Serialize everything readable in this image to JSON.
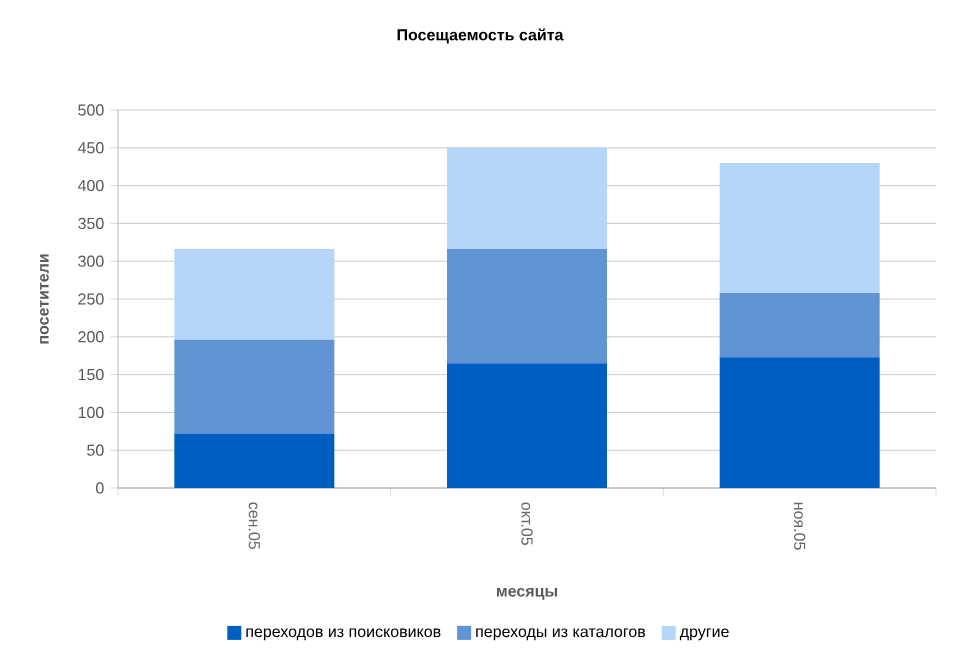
{
  "chart_data": {
    "type": "bar",
    "title": "Посещаемость сайта",
    "xlabel": "месяцы",
    "ylabel": "посетители",
    "categories": [
      "сен.05",
      "окт.05",
      "ноя.05"
    ],
    "stacked": true,
    "series": [
      {
        "name": "переходов из поисковиков",
        "color": "#005ec0",
        "values": [
          72,
          165,
          173
        ]
      },
      {
        "name": "переходы из каталогов",
        "color": "#6094d4",
        "values": [
          124,
          151,
          85
        ]
      },
      {
        "name": "другие",
        "color": "#b5d5fa",
        "values": [
          120,
          134,
          172
        ]
      }
    ],
    "ylim": [
      0,
      500
    ],
    "yticks": [
      0,
      50,
      100,
      150,
      200,
      250,
      300,
      350,
      400,
      450,
      500
    ],
    "grid": "y",
    "legend": "bottom"
  }
}
